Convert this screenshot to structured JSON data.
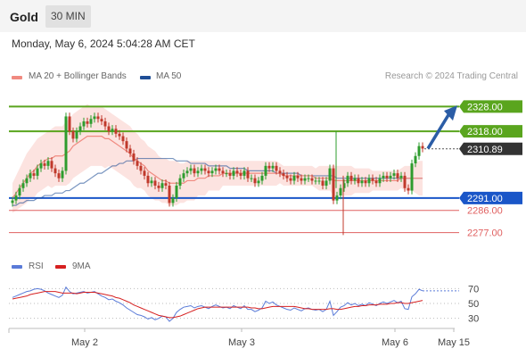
{
  "header": {
    "title": "Gold",
    "timeframe": "30 MIN"
  },
  "timestamp": "Monday, May 6, 2024 5:04:28 AM CET",
  "legend": {
    "ma20_label": "MA 20 + Bollinger Bands",
    "ma50_label": "MA 50",
    "credit": "Research © 2024 Trading Central",
    "rsi_label": "RSI",
    "rsi_ma_label": "9MA"
  },
  "colors": {
    "ma20": "#f08a80",
    "ma50": "#1f4e96",
    "band_fill": "#fbd9d6",
    "candle": "#2e9c2e",
    "candle_down": "#c0392b",
    "resistance": "#5aa51e",
    "pivot": "#1a56c8",
    "support": "#e06060",
    "current": "#333333",
    "arrow": "#2b5da6",
    "rsi": "#5a7bd8",
    "rsi_ma": "#d62020"
  },
  "chart_data": [
    {
      "type": "candlestick",
      "title": "",
      "x_labels": [
        "May 2",
        "May 3",
        "May 6",
        "May 15"
      ],
      "ylim": [
        2270,
        2335
      ],
      "levels": [
        {
          "value": 2328.0,
          "label": "2328.00",
          "kind": "resistance"
        },
        {
          "value": 2318.0,
          "label": "2318.00",
          "kind": "resistance"
        },
        {
          "value": 2310.89,
          "label": "2310.89",
          "kind": "current"
        },
        {
          "value": 2291.0,
          "label": "2291.00",
          "kind": "pivot"
        },
        {
          "value": 2286.0,
          "label": "2286.00",
          "kind": "support"
        },
        {
          "value": 2277.0,
          "label": "2277.00",
          "kind": "support"
        }
      ],
      "close": [
        2290,
        2292,
        2295,
        2297,
        2299,
        2301,
        2300,
        2303,
        2305,
        2304,
        2306,
        2303,
        2301,
        2299,
        2302,
        2324,
        2318,
        2315,
        2318,
        2320,
        2322,
        2321,
        2323,
        2324,
        2323,
        2322,
        2320,
        2318,
        2319,
        2317,
        2316,
        2314,
        2311,
        2309,
        2306,
        2304,
        2302,
        2300,
        2297,
        2298,
        2296,
        2295,
        2297,
        2296,
        2289,
        2291,
        2296,
        2299,
        2301,
        2302,
        2303,
        2301,
        2302,
        2303,
        2302,
        2301,
        2302,
        2303,
        2302,
        2301,
        2301,
        2300,
        2302,
        2301,
        2300,
        2302,
        2299,
        2299,
        2297,
        2298,
        2300,
        2304,
        2303,
        2304,
        2302,
        2301,
        2300,
        2299,
        2298,
        2300,
        2299,
        2298,
        2299,
        2299,
        2298,
        2298,
        2298,
        2296,
        2298,
        2303,
        2290,
        2292,
        2295,
        2297,
        2300,
        2298,
        2299,
        2297,
        2298,
        2297,
        2299,
        2298,
        2297,
        2299,
        2300,
        2299,
        2300,
        2301,
        2299,
        2300,
        2295,
        2294,
        2305,
        2308,
        2312,
        2311
      ],
      "ma20": [
        2291,
        2293,
        2295,
        2297,
        2299,
        2301,
        2302,
        2304,
        2305,
        2306,
        2307,
        2307,
        2308,
        2308,
        2308,
        2309,
        2310,
        2312,
        2313,
        2314,
        2315,
        2316,
        2316,
        2316,
        2316,
        2316,
        2315,
        2315,
        2314,
        2313,
        2312,
        2311,
        2310,
        2309,
        2307,
        2306,
        2305,
        2304,
        2302,
        2301,
        2300,
        2299,
        2298,
        2298,
        2297,
        2297,
        2297,
        2297,
        2297,
        2298,
        2298,
        2298,
        2299,
        2299,
        2299,
        2300,
        2300,
        2300,
        2300,
        2301,
        2301,
        2301,
        2301,
        2301,
        2301,
        2301,
        2301,
        2301,
        2301,
        2301,
        2301,
        2301,
        2301,
        2301,
        2301,
        2301,
        2300,
        2300,
        2300,
        2300,
        2300,
        2300,
        2300,
        2300,
        2300,
        2299,
        2299,
        2299,
        2299,
        2299,
        2298,
        2298,
        2298,
        2298,
        2298,
        2298,
        2298,
        2298,
        2298,
        2298,
        2298,
        2298,
        2298,
        2298,
        2298,
        2298,
        2298,
        2298,
        2298,
        2299,
        2299,
        2299,
        2299,
        2299,
        2299,
        2299
      ],
      "ma50": [
        2288,
        2288,
        2289,
        2289,
        2290,
        2290,
        2290,
        2291,
        2291,
        2292,
        2292,
        2292,
        2293,
        2293,
        2293,
        2294,
        2294,
        2295,
        2296,
        2297,
        2297,
        2298,
        2299,
        2300,
        2301,
        2301,
        2302,
        2303,
        2304,
        2304,
        2305,
        2305,
        2306,
        2306,
        2306,
        2307,
        2307,
        2307,
        2307,
        2307,
        2307,
        2307,
        2307,
        2307,
        2307,
        2307,
        2306,
        2306,
        2306,
        2306,
        2305,
        2305,
        2305,
        2305,
        2305,
        2304,
        2304,
        2304,
        2304,
        2304,
        2304,
        2303,
        2303,
        2303,
        2303,
        2303,
        2302,
        2302,
        2302,
        2302,
        2302,
        2302,
        2302,
        2302,
        2301,
        2301,
        2301,
        2301,
        2301,
        2301,
        2301,
        2300,
        2300,
        2300,
        2300,
        2300,
        2300,
        2300,
        2300,
        2300,
        2300,
        2299,
        2299,
        2299,
        2299,
        2299,
        2299,
        2299,
        2299,
        2299,
        2299,
        2299,
        2299,
        2299,
        2299,
        2299,
        2299,
        2299,
        2299,
        2299,
        2299,
        2299,
        2299,
        2299,
        2299,
        2299
      ],
      "band_half_width": [
        6,
        7,
        8,
        9,
        10,
        10,
        11,
        11,
        11,
        11,
        11,
        12,
        12,
        12,
        12,
        13,
        13,
        13,
        13,
        13,
        13,
        13,
        12,
        12,
        12,
        12,
        12,
        11,
        11,
        11,
        11,
        11,
        11,
        11,
        11,
        11,
        10,
        10,
        10,
        10,
        10,
        9,
        9,
        9,
        9,
        9,
        9,
        8,
        8,
        8,
        8,
        8,
        7,
        7,
        7,
        6,
        6,
        6,
        6,
        5,
        5,
        5,
        5,
        5,
        5,
        5,
        5,
        5,
        5,
        5,
        5,
        5,
        5,
        5,
        5,
        4,
        4,
        4,
        4,
        4,
        4,
        4,
        4,
        4,
        4,
        4,
        5,
        5,
        5,
        5,
        6,
        6,
        6,
        6,
        6,
        6,
        5,
        5,
        5,
        5,
        5,
        4,
        4,
        4,
        4,
        4,
        4,
        4,
        4,
        4,
        5,
        5,
        5,
        6,
        7,
        7
      ]
    },
    {
      "type": "line",
      "title": "",
      "ylim": [
        20,
        80
      ],
      "yticks": [
        70,
        50,
        30
      ],
      "series": [
        {
          "name": "RSI",
          "values": [
            58,
            60,
            62,
            64,
            66,
            67,
            69,
            70,
            69,
            67,
            64,
            62,
            60,
            58,
            61,
            72,
            66,
            63,
            64,
            65,
            66,
            64,
            65,
            66,
            63,
            60,
            58,
            55,
            56,
            53,
            51,
            48,
            44,
            41,
            38,
            35,
            34,
            32,
            29,
            31,
            28,
            30,
            33,
            32,
            26,
            30,
            38,
            42,
            45,
            46,
            47,
            44,
            46,
            47,
            45,
            43,
            46,
            48,
            46,
            44,
            45,
            43,
            47,
            45,
            43,
            47,
            42,
            42,
            39,
            41,
            44,
            53,
            50,
            52,
            48,
            46,
            44,
            42,
            41,
            44,
            42,
            40,
            43,
            44,
            42,
            41,
            42,
            39,
            42,
            53,
            34,
            39,
            45,
            47,
            51,
            48,
            50,
            47,
            49,
            47,
            51,
            49,
            47,
            50,
            52,
            50,
            52,
            54,
            51,
            53,
            43,
            42,
            59,
            63,
            69,
            67
          ]
        },
        {
          "name": "9MA",
          "values": [
            56,
            57,
            58,
            59,
            60,
            62,
            63,
            64,
            65,
            66,
            66,
            66,
            66,
            65,
            64,
            64,
            64,
            64,
            63,
            64,
            65,
            65,
            65,
            65,
            64,
            63,
            62,
            61,
            60,
            58,
            57,
            55,
            53,
            51,
            48,
            46,
            44,
            42,
            40,
            38,
            36,
            34,
            33,
            32,
            31,
            31,
            32,
            33,
            35,
            37,
            39,
            41,
            43,
            44,
            45,
            45,
            45,
            45,
            45,
            45,
            45,
            45,
            45,
            45,
            45,
            45,
            45,
            44,
            44,
            43,
            43,
            44,
            45,
            46,
            46,
            46,
            46,
            46,
            46,
            46,
            45,
            44,
            43,
            43,
            42,
            42,
            42,
            42,
            42,
            43,
            43,
            42,
            42,
            43,
            44,
            45,
            46,
            46,
            47,
            47,
            48,
            48,
            48,
            49,
            49,
            49,
            50,
            50,
            51,
            51,
            50,
            50,
            51,
            52,
            53,
            54
          ]
        }
      ]
    }
  ]
}
